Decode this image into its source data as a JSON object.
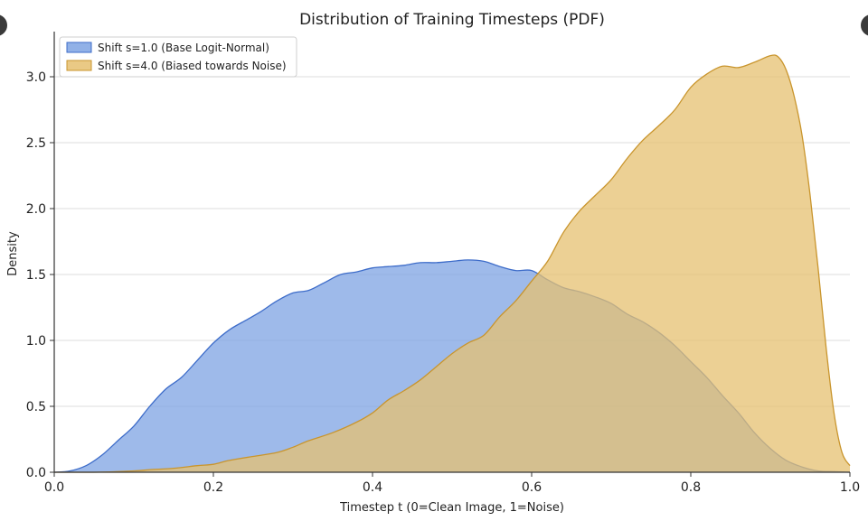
{
  "chart_data": {
    "type": "area",
    "title": "Distribution of Training Timesteps (PDF)",
    "xlabel": "Timestep t (0=Clean Image, 1=Noise)",
    "ylabel": "Density",
    "xlim": [
      0.0,
      1.0
    ],
    "ylim": [
      0.0,
      3.35
    ],
    "xticks": [
      "0.0",
      "0.2",
      "0.4",
      "0.6",
      "0.8",
      "1.0"
    ],
    "yticks": [
      "0.0",
      "0.5",
      "1.0",
      "1.5",
      "2.0",
      "2.5",
      "3.0"
    ],
    "grid": "horizontal",
    "legend_position": "top-left",
    "series": [
      {
        "name": "Shift s=1.0 (Base Logit-Normal)",
        "fill": "#7ea3e3",
        "stroke": "#3d6cc9",
        "x": [
          0.0,
          0.02,
          0.04,
          0.06,
          0.08,
          0.1,
          0.12,
          0.14,
          0.16,
          0.18,
          0.2,
          0.22,
          0.24,
          0.26,
          0.28,
          0.3,
          0.32,
          0.34,
          0.36,
          0.38,
          0.4,
          0.42,
          0.44,
          0.46,
          0.48,
          0.5,
          0.52,
          0.54,
          0.56,
          0.58,
          0.6,
          0.62,
          0.64,
          0.66,
          0.68,
          0.7,
          0.72,
          0.74,
          0.76,
          0.78,
          0.8,
          0.82,
          0.84,
          0.86,
          0.88,
          0.9,
          0.92,
          0.94,
          0.96,
          0.98,
          1.0
        ],
        "y": [
          0.0,
          0.01,
          0.05,
          0.13,
          0.24,
          0.35,
          0.5,
          0.63,
          0.72,
          0.85,
          0.98,
          1.08,
          1.15,
          1.22,
          1.3,
          1.36,
          1.38,
          1.44,
          1.5,
          1.52,
          1.55,
          1.56,
          1.57,
          1.59,
          1.59,
          1.6,
          1.61,
          1.6,
          1.56,
          1.53,
          1.53,
          1.46,
          1.4,
          1.37,
          1.33,
          1.28,
          1.2,
          1.14,
          1.06,
          0.96,
          0.84,
          0.72,
          0.58,
          0.45,
          0.3,
          0.18,
          0.09,
          0.04,
          0.01,
          0.005,
          0.0
        ]
      },
      {
        "name": "Shift s=4.0 (Biased towards Noise)",
        "fill": "#e6c070",
        "stroke": "#c9952d",
        "x": [
          0.0,
          0.05,
          0.1,
          0.12,
          0.15,
          0.18,
          0.2,
          0.22,
          0.25,
          0.28,
          0.3,
          0.32,
          0.35,
          0.38,
          0.4,
          0.42,
          0.44,
          0.46,
          0.48,
          0.5,
          0.52,
          0.54,
          0.56,
          0.58,
          0.6,
          0.62,
          0.64,
          0.66,
          0.68,
          0.7,
          0.72,
          0.74,
          0.76,
          0.78,
          0.8,
          0.82,
          0.84,
          0.86,
          0.88,
          0.9,
          0.91,
          0.92,
          0.93,
          0.94,
          0.95,
          0.96,
          0.97,
          0.98,
          0.99,
          1.0
        ],
        "y": [
          0.0,
          0.0,
          0.01,
          0.02,
          0.03,
          0.05,
          0.06,
          0.09,
          0.12,
          0.15,
          0.19,
          0.24,
          0.3,
          0.38,
          0.45,
          0.55,
          0.62,
          0.7,
          0.8,
          0.9,
          0.98,
          1.04,
          1.18,
          1.3,
          1.45,
          1.6,
          1.82,
          1.98,
          2.1,
          2.22,
          2.38,
          2.52,
          2.63,
          2.75,
          2.92,
          3.02,
          3.08,
          3.07,
          3.11,
          3.16,
          3.15,
          3.05,
          2.85,
          2.55,
          2.1,
          1.55,
          0.95,
          0.45,
          0.15,
          0.05
        ]
      }
    ]
  }
}
